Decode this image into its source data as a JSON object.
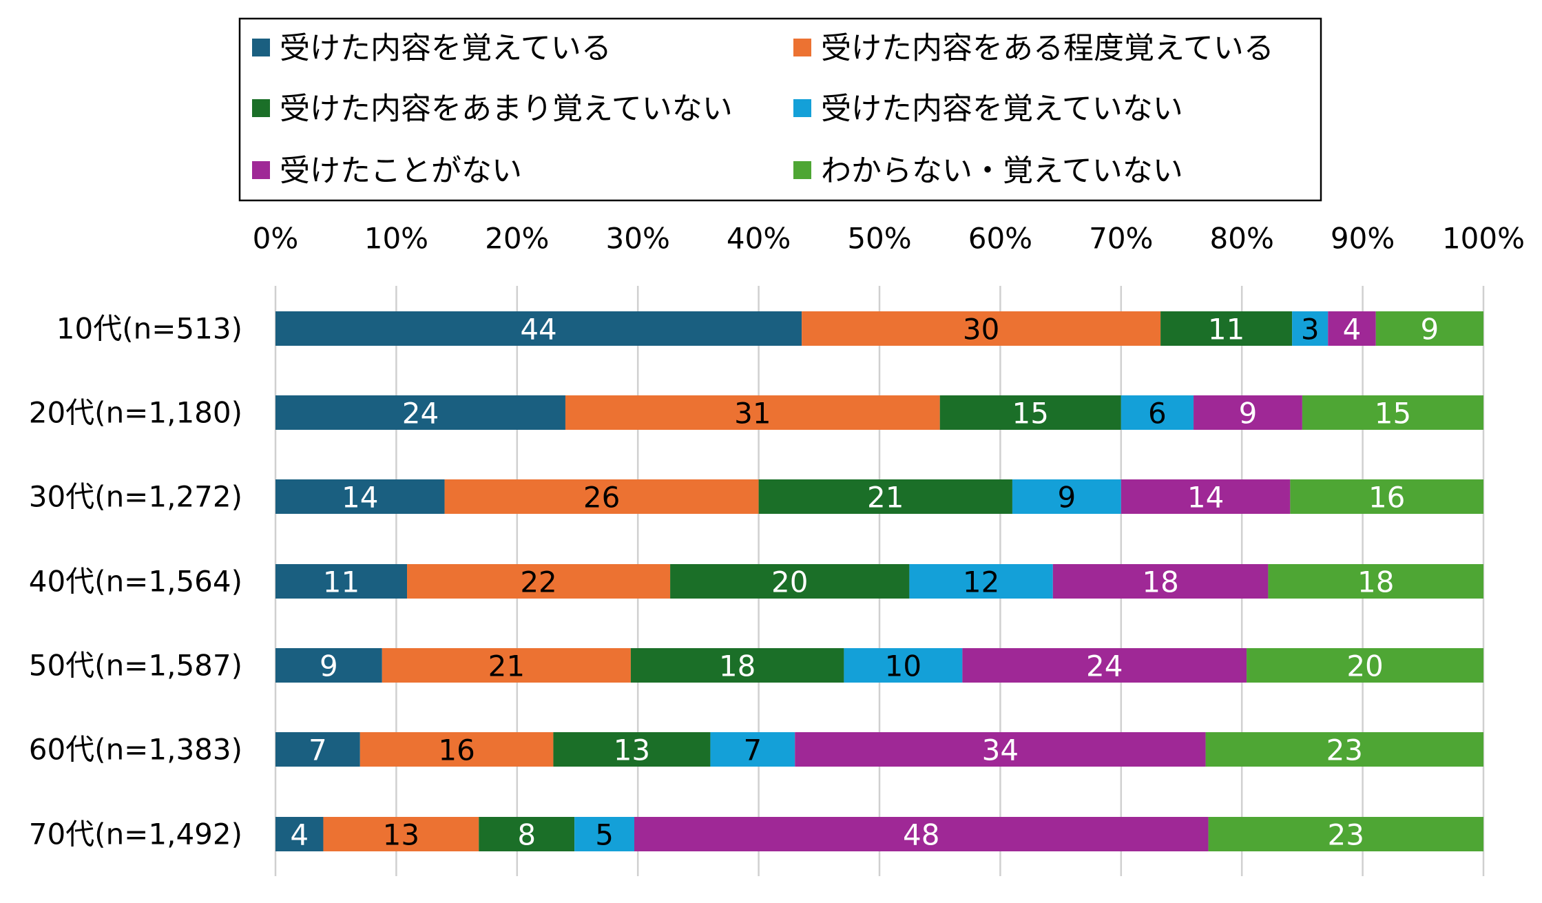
{
  "chart_data": {
    "type": "bar",
    "orientation": "horizontal",
    "stacked": true,
    "percent_stacked": true,
    "categories": [
      "10代(n=513)",
      "20代(n=1,180)",
      "30代(n=1,272)",
      "40代(n=1,564)",
      "50代(n=1,587)",
      "60代(n=1,383)",
      "70代(n=1,492)"
    ],
    "series": [
      {
        "name": "受けた内容を覚えている",
        "color": "#1a5f80",
        "label_color": "#ffffff",
        "values": [
          44,
          24,
          14,
          11,
          9,
          7,
          4
        ]
      },
      {
        "name": "受けた内容をある程度覚えている",
        "color": "#ec7232",
        "label_color": "#000000",
        "values": [
          30,
          31,
          26,
          22,
          21,
          16,
          13
        ]
      },
      {
        "name": "受けた内容をあまり覚えていない",
        "color": "#1b6f28",
        "label_color": "#ffffff",
        "values": [
          11,
          15,
          21,
          20,
          18,
          13,
          8
        ]
      },
      {
        "name": "受けた内容を覚えていない",
        "color": "#14a0d8",
        "label_color": "#000000",
        "values": [
          3,
          6,
          9,
          12,
          10,
          7,
          5
        ]
      },
      {
        "name": "受けたことがない",
        "color": "#9f2896",
        "label_color": "#ffffff",
        "values": [
          4,
          9,
          14,
          18,
          24,
          34,
          48
        ]
      },
      {
        "name": "わからない・覚えていない",
        "color": "#4ea634",
        "label_color": "#ffffff",
        "values": [
          9,
          15,
          16,
          18,
          20,
          23,
          23
        ]
      }
    ],
    "x_ticks": [
      "0%",
      "10%",
      "20%",
      "30%",
      "40%",
      "50%",
      "60%",
      "70%",
      "80%",
      "90%",
      "100%"
    ],
    "xlim": [
      0,
      100
    ],
    "x_axis_position": "top",
    "grid": true,
    "legend_position": "top",
    "legend_columns": 2,
    "title": "",
    "xlabel": "",
    "ylabel": ""
  }
}
